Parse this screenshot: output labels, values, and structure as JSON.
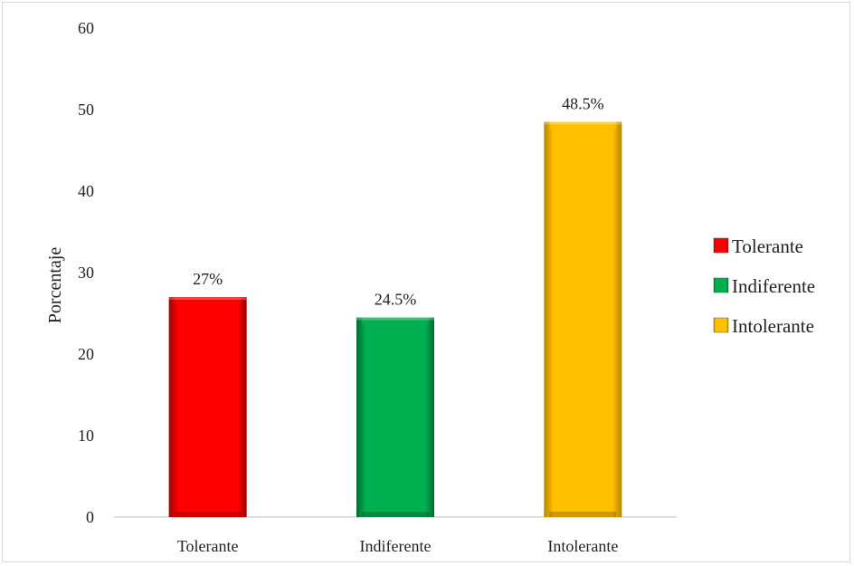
{
  "chart_data": {
    "type": "bar",
    "categories": [
      "Tolerante",
      "Indiferente",
      "Intolerante"
    ],
    "values": [
      27,
      24.5,
      48.5
    ],
    "data_labels": [
      "27%",
      "24.5%",
      "48.5%"
    ],
    "colors": [
      "#ff0000",
      "#00b050",
      "#ffc000"
    ],
    "ylabel": "Porcentaje",
    "xlabel": "",
    "ylim": [
      0,
      60
    ],
    "yticks": [
      0,
      10,
      20,
      30,
      40,
      50,
      60
    ],
    "grid": false,
    "legend": {
      "placement": "right",
      "entries": [
        "Tolerante",
        "Indiferente",
        "Intolerante"
      ]
    }
  }
}
